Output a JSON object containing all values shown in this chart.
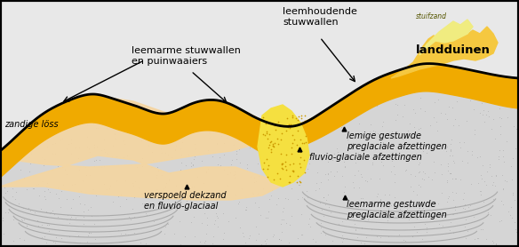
{
  "colors": {
    "gray_dotted": "#c8c8c8",
    "orange_dark": "#f0aa00",
    "orange_light": "#f5c840",
    "peach": "#f5d5a0",
    "light_yellow": "#f0e888",
    "dotted_fill": "#f5e840",
    "white": "#ffffff",
    "black": "#000000",
    "gray_arc": "#aaaaaa",
    "gray_bg": "#d8d8d8"
  },
  "labels": {
    "zandige_loss": "zandige löss",
    "leemarme": "leemarme stuwwallen\nen puinwaaiers",
    "leemhoudende": "leemhoudende\nstuwwallen",
    "landduinen": "landduinen",
    "stuifzand": "stuifzand",
    "fluvio": "fluvio-glaciale afzettingen",
    "verspoeld": "verspoeld dekzand\nen fluvio-glaciaal",
    "lemige": "lemige gestuwde\npreglaciale afzettingen",
    "leemarme_gestuwde": "leemarme gestuwde\npreglaciale afzettingen"
  }
}
